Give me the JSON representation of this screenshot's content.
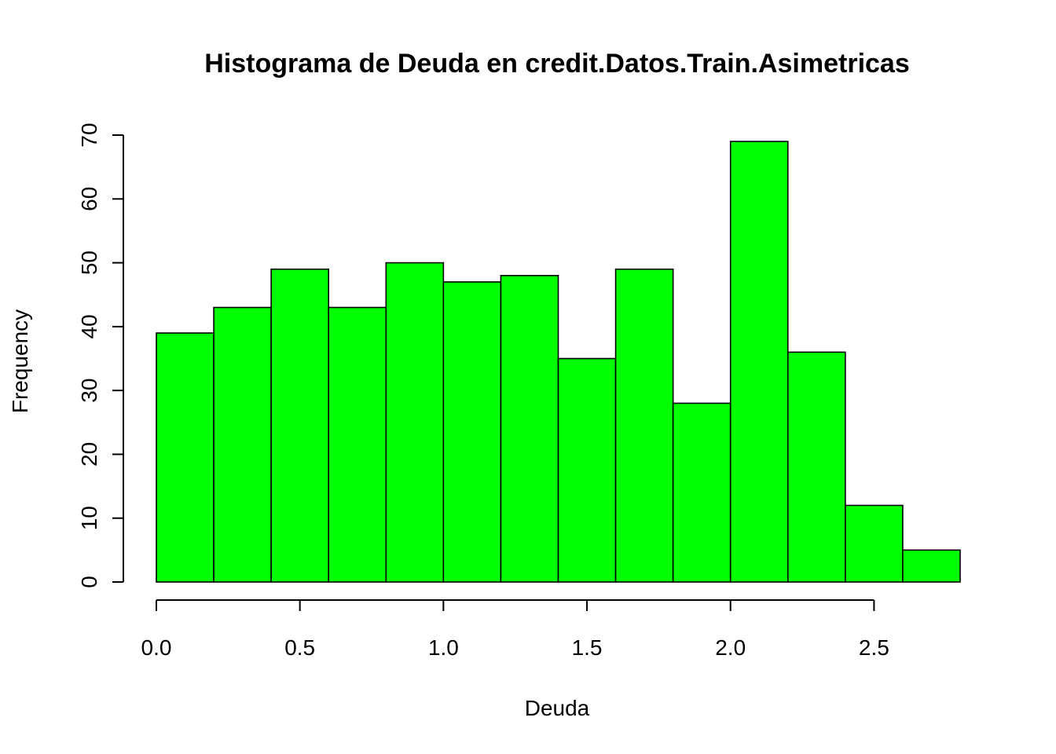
{
  "chart_data": {
    "type": "bar",
    "title": "Histograma de Deuda en credit.Datos.Train.Asimetricas",
    "xlabel": "Deuda",
    "ylabel": "Frequency",
    "bin_edges": [
      0.0,
      0.2,
      0.4,
      0.6,
      0.8,
      1.0,
      1.2,
      1.4,
      1.6,
      1.8,
      2.0,
      2.2,
      2.4,
      2.6,
      2.8
    ],
    "values": [
      39,
      43,
      49,
      43,
      50,
      47,
      48,
      35,
      49,
      28,
      69,
      36,
      12,
      5
    ],
    "xlim": [
      0.0,
      2.8
    ],
    "ylim": [
      0,
      70
    ],
    "x_ticks": [
      "0.0",
      "0.5",
      "1.0",
      "1.5",
      "2.0",
      "2.5"
    ],
    "y_ticks": [
      "0",
      "10",
      "20",
      "30",
      "40",
      "50",
      "60",
      "70"
    ],
    "bar_color": "#00ff00",
    "grid": false,
    "legend": "none"
  }
}
